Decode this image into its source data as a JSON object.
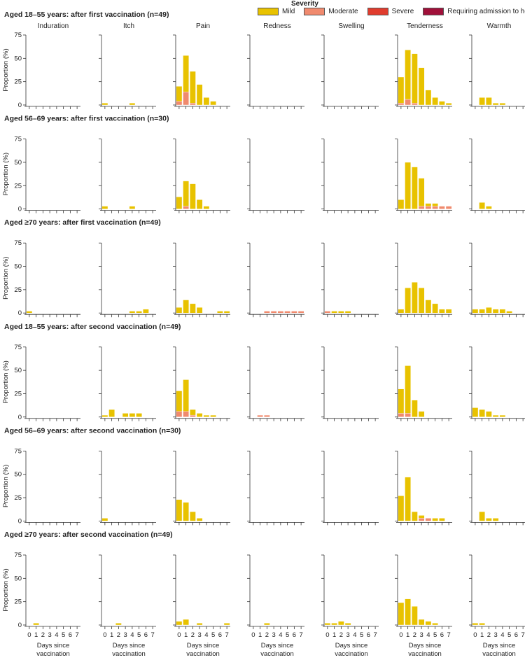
{
  "legend": {
    "title": "Severity",
    "items": [
      {
        "label": "Mild",
        "color": "#e8c200"
      },
      {
        "label": "Moderate",
        "color": "#f08a6e"
      },
      {
        "label": "Severe",
        "color": "#e03c2e"
      },
      {
        "label": "Requiring admission to hospital",
        "color": "#a0103a"
      }
    ]
  },
  "chart_data": {
    "type": "bar",
    "stacked": true,
    "ylabel": "Proportion (%)",
    "xlabel": "Days since vaccination",
    "x": [
      0,
      1,
      2,
      3,
      4,
      5,
      6,
      7
    ],
    "ylim": [
      0,
      75
    ],
    "yticks": [
      0,
      25,
      50,
      75
    ],
    "panels": [
      "Induration",
      "Itch",
      "Pain",
      "Redness",
      "Swelling",
      "Tenderness",
      "Warmth"
    ],
    "series": [
      "Mild",
      "Moderate",
      "Severe",
      "Requiring admission to hospital"
    ],
    "rows": [
      {
        "title": "Aged 18–55 years: after first vaccination (n=49)",
        "panels": {
          "Induration": {
            "Mild": [
              0,
              0,
              0,
              0,
              0,
              0,
              0,
              0
            ],
            "Moderate": [
              0,
              0,
              0,
              0,
              0,
              0,
              0,
              0
            ]
          },
          "Itch": {
            "Mild": [
              2,
              0,
              0,
              0,
              2,
              0,
              0,
              0
            ],
            "Moderate": [
              0,
              0,
              0,
              0,
              0,
              0,
              0,
              0
            ]
          },
          "Pain": {
            "Mild": [
              16,
              39,
              34,
              22,
              8,
              4,
              0,
              0
            ],
            "Moderate": [
              4,
              14,
              2,
              0,
              0,
              0,
              0,
              0
            ]
          },
          "Redness": {
            "Mild": [
              0,
              0,
              0,
              0,
              0,
              0,
              0,
              0
            ],
            "Moderate": [
              0,
              0,
              0,
              0,
              0,
              0,
              0,
              0
            ]
          },
          "Swelling": {
            "Mild": [
              0,
              0,
              0,
              0,
              0,
              0,
              0,
              0
            ],
            "Moderate": [
              0,
              0,
              0,
              0,
              0,
              0,
              0,
              0
            ]
          },
          "Tenderness": {
            "Mild": [
              28,
              53,
              53,
              40,
              16,
              8,
              4,
              2
            ],
            "Moderate": [
              2,
              6,
              2,
              0,
              0,
              0,
              0,
              0
            ]
          },
          "Warmth": {
            "Mild": [
              0,
              8,
              8,
              2,
              2,
              0,
              0,
              0
            ],
            "Moderate": [
              0,
              0,
              0,
              0,
              0,
              0,
              0,
              0
            ]
          }
        }
      },
      {
        "title": "Aged 56–69 years: after first vaccination (n=30)",
        "panels": {
          "Induration": {
            "Mild": [
              0,
              0,
              0,
              0,
              0,
              0,
              0,
              0
            ],
            "Moderate": [
              0,
              0,
              0,
              0,
              0,
              0,
              0,
              0
            ]
          },
          "Itch": {
            "Mild": [
              3,
              0,
              0,
              0,
              3,
              0,
              0,
              0
            ],
            "Moderate": [
              0,
              0,
              0,
              0,
              0,
              0,
              0,
              0
            ]
          },
          "Pain": {
            "Mild": [
              13,
              27,
              27,
              10,
              3,
              0,
              0,
              0
            ],
            "Moderate": [
              0,
              3,
              0,
              0,
              0,
              0,
              0,
              0
            ]
          },
          "Redness": {
            "Mild": [
              0,
              0,
              0,
              0,
              0,
              0,
              0,
              0
            ],
            "Moderate": [
              0,
              0,
              0,
              0,
              0,
              0,
              0,
              0
            ]
          },
          "Swelling": {
            "Mild": [
              0,
              0,
              0,
              0,
              0,
              0,
              0,
              0
            ],
            "Moderate": [
              0,
              0,
              0,
              0,
              0,
              0,
              0,
              0
            ]
          },
          "Tenderness": {
            "Mild": [
              10,
              50,
              45,
              30,
              3,
              3,
              0,
              0
            ],
            "Moderate": [
              0,
              0,
              0,
              3,
              3,
              3,
              3,
              3
            ]
          },
          "Warmth": {
            "Mild": [
              0,
              7,
              3,
              0,
              0,
              0,
              0,
              0
            ],
            "Moderate": [
              0,
              0,
              0,
              0,
              0,
              0,
              0,
              0
            ]
          }
        }
      },
      {
        "title": "Aged ≥70 years: after first  vaccination (n=49)",
        "panels": {
          "Induration": {
            "Mild": [
              2,
              0,
              0,
              0,
              0,
              0,
              0,
              0
            ],
            "Moderate": [
              0,
              0,
              0,
              0,
              0,
              0,
              0,
              0
            ]
          },
          "Itch": {
            "Mild": [
              0,
              0,
              0,
              0,
              2,
              2,
              4,
              0
            ],
            "Moderate": [
              0,
              0,
              0,
              0,
              0,
              0,
              0,
              0
            ]
          },
          "Pain": {
            "Mild": [
              6,
              14,
              10,
              6,
              0,
              0,
              2,
              2
            ],
            "Moderate": [
              0,
              0,
              0,
              0,
              0,
              0,
              0,
              0
            ]
          },
          "Redness": {
            "Mild": [
              0,
              0,
              0,
              0,
              0,
              0,
              0,
              0
            ],
            "Moderate": [
              0,
              0,
              2,
              2,
              2,
              2,
              2,
              2
            ]
          },
          "Swelling": {
            "Mild": [
              0,
              2,
              2,
              2,
              0,
              0,
              0,
              0
            ],
            "Moderate": [
              2,
              0,
              0,
              0,
              0,
              0,
              0,
              0
            ]
          },
          "Tenderness": {
            "Mild": [
              4,
              27,
              33,
              27,
              14,
              10,
              4,
              4
            ],
            "Moderate": [
              0,
              0,
              0,
              0,
              0,
              0,
              0,
              0
            ]
          },
          "Warmth": {
            "Mild": [
              4,
              4,
              6,
              4,
              4,
              2,
              0,
              0
            ],
            "Moderate": [
              0,
              0,
              0,
              0,
              0,
              0,
              0,
              0
            ]
          }
        }
      },
      {
        "title": "Aged 18–55 years: after second vaccination (n=49)",
        "panels": {
          "Induration": {
            "Mild": [
              0,
              0,
              0,
              0,
              0,
              0,
              0,
              0
            ],
            "Moderate": [
              0,
              0,
              0,
              0,
              0,
              0,
              0,
              0
            ]
          },
          "Itch": {
            "Mild": [
              2,
              8,
              0,
              4,
              4,
              4,
              0,
              0
            ],
            "Moderate": [
              0,
              0,
              0,
              0,
              0,
              0,
              0,
              0
            ]
          },
          "Pain": {
            "Mild": [
              22,
              34,
              6,
              4,
              2,
              2,
              0,
              0
            ],
            "Moderate": [
              6,
              6,
              2,
              0,
              0,
              0,
              0,
              0
            ]
          },
          "Redness": {
            "Mild": [
              0,
              0,
              0,
              0,
              0,
              0,
              0,
              0
            ],
            "Moderate": [
              0,
              2,
              2,
              0,
              0,
              0,
              0,
              0
            ]
          },
          "Swelling": {
            "Mild": [
              0,
              0,
              0,
              0,
              0,
              0,
              0,
              0
            ],
            "Moderate": [
              0,
              0,
              0,
              0,
              0,
              0,
              0,
              0
            ]
          },
          "Tenderness": {
            "Mild": [
              26,
              51,
              18,
              6,
              0,
              0,
              0,
              0
            ],
            "Moderate": [
              4,
              4,
              0,
              0,
              0,
              0,
              0,
              0
            ]
          },
          "Warmth": {
            "Mild": [
              10,
              8,
              6,
              2,
              2,
              0,
              0,
              0
            ],
            "Moderate": [
              0,
              0,
              0,
              0,
              0,
              0,
              0,
              0
            ]
          }
        }
      },
      {
        "title": "Aged 56–69 years: after second vaccination (n=30)",
        "panels": {
          "Induration": {
            "Mild": [
              0,
              0,
              0,
              0,
              0,
              0,
              0,
              0
            ],
            "Moderate": [
              0,
              0,
              0,
              0,
              0,
              0,
              0,
              0
            ]
          },
          "Itch": {
            "Mild": [
              3,
              0,
              0,
              0,
              0,
              0,
              0,
              0
            ],
            "Moderate": [
              0,
              0,
              0,
              0,
              0,
              0,
              0,
              0
            ]
          },
          "Pain": {
            "Mild": [
              23,
              20,
              10,
              3,
              0,
              0,
              0,
              0
            ],
            "Moderate": [
              0,
              0,
              0,
              0,
              0,
              0,
              0,
              0
            ]
          },
          "Redness": {
            "Mild": [
              0,
              0,
              0,
              0,
              0,
              0,
              0,
              0
            ],
            "Moderate": [
              0,
              0,
              0,
              0,
              0,
              0,
              0,
              0
            ]
          },
          "Swelling": {
            "Mild": [
              0,
              0,
              0,
              0,
              0,
              0,
              0,
              0
            ],
            "Moderate": [
              0,
              0,
              0,
              0,
              0,
              0,
              0,
              0
            ]
          },
          "Tenderness": {
            "Mild": [
              27,
              47,
              10,
              3,
              0,
              3,
              3,
              0
            ],
            "Moderate": [
              0,
              0,
              0,
              3,
              3,
              0,
              0,
              0
            ]
          },
          "Warmth": {
            "Mild": [
              0,
              10,
              3,
              3,
              0,
              0,
              0,
              0
            ],
            "Moderate": [
              0,
              0,
              0,
              0,
              0,
              0,
              0,
              0
            ]
          }
        }
      },
      {
        "title": "Aged ≥70 years: after second vaccination (n=49)",
        "panels": {
          "Induration": {
            "Mild": [
              0,
              2,
              0,
              0,
              0,
              0,
              0,
              0
            ],
            "Moderate": [
              0,
              0,
              0,
              0,
              0,
              0,
              0,
              0
            ]
          },
          "Itch": {
            "Mild": [
              0,
              0,
              2,
              0,
              0,
              0,
              0,
              0
            ],
            "Moderate": [
              0,
              0,
              0,
              0,
              0,
              0,
              0,
              0
            ]
          },
          "Pain": {
            "Mild": [
              4,
              6,
              0,
              2,
              0,
              0,
              0,
              2
            ],
            "Moderate": [
              0,
              0,
              0,
              0,
              0,
              0,
              0,
              0
            ]
          },
          "Redness": {
            "Mild": [
              0,
              0,
              2,
              0,
              0,
              0,
              0,
              0
            ],
            "Moderate": [
              0,
              0,
              0,
              0,
              0,
              0,
              0,
              0
            ]
          },
          "Swelling": {
            "Mild": [
              2,
              2,
              4,
              2,
              0,
              0,
              0,
              0
            ],
            "Moderate": [
              0,
              0,
              0,
              0,
              0,
              0,
              0,
              0
            ]
          },
          "Tenderness": {
            "Mild": [
              24,
              28,
              20,
              6,
              4,
              2,
              0,
              0
            ],
            "Moderate": [
              0,
              0,
              0,
              0,
              0,
              0,
              0,
              0
            ]
          },
          "Warmth": {
            "Mild": [
              2,
              2,
              0,
              0,
              0,
              0,
              0,
              0
            ],
            "Moderate": [
              0,
              0,
              0,
              0,
              0,
              0,
              0,
              0
            ]
          }
        }
      }
    ]
  }
}
